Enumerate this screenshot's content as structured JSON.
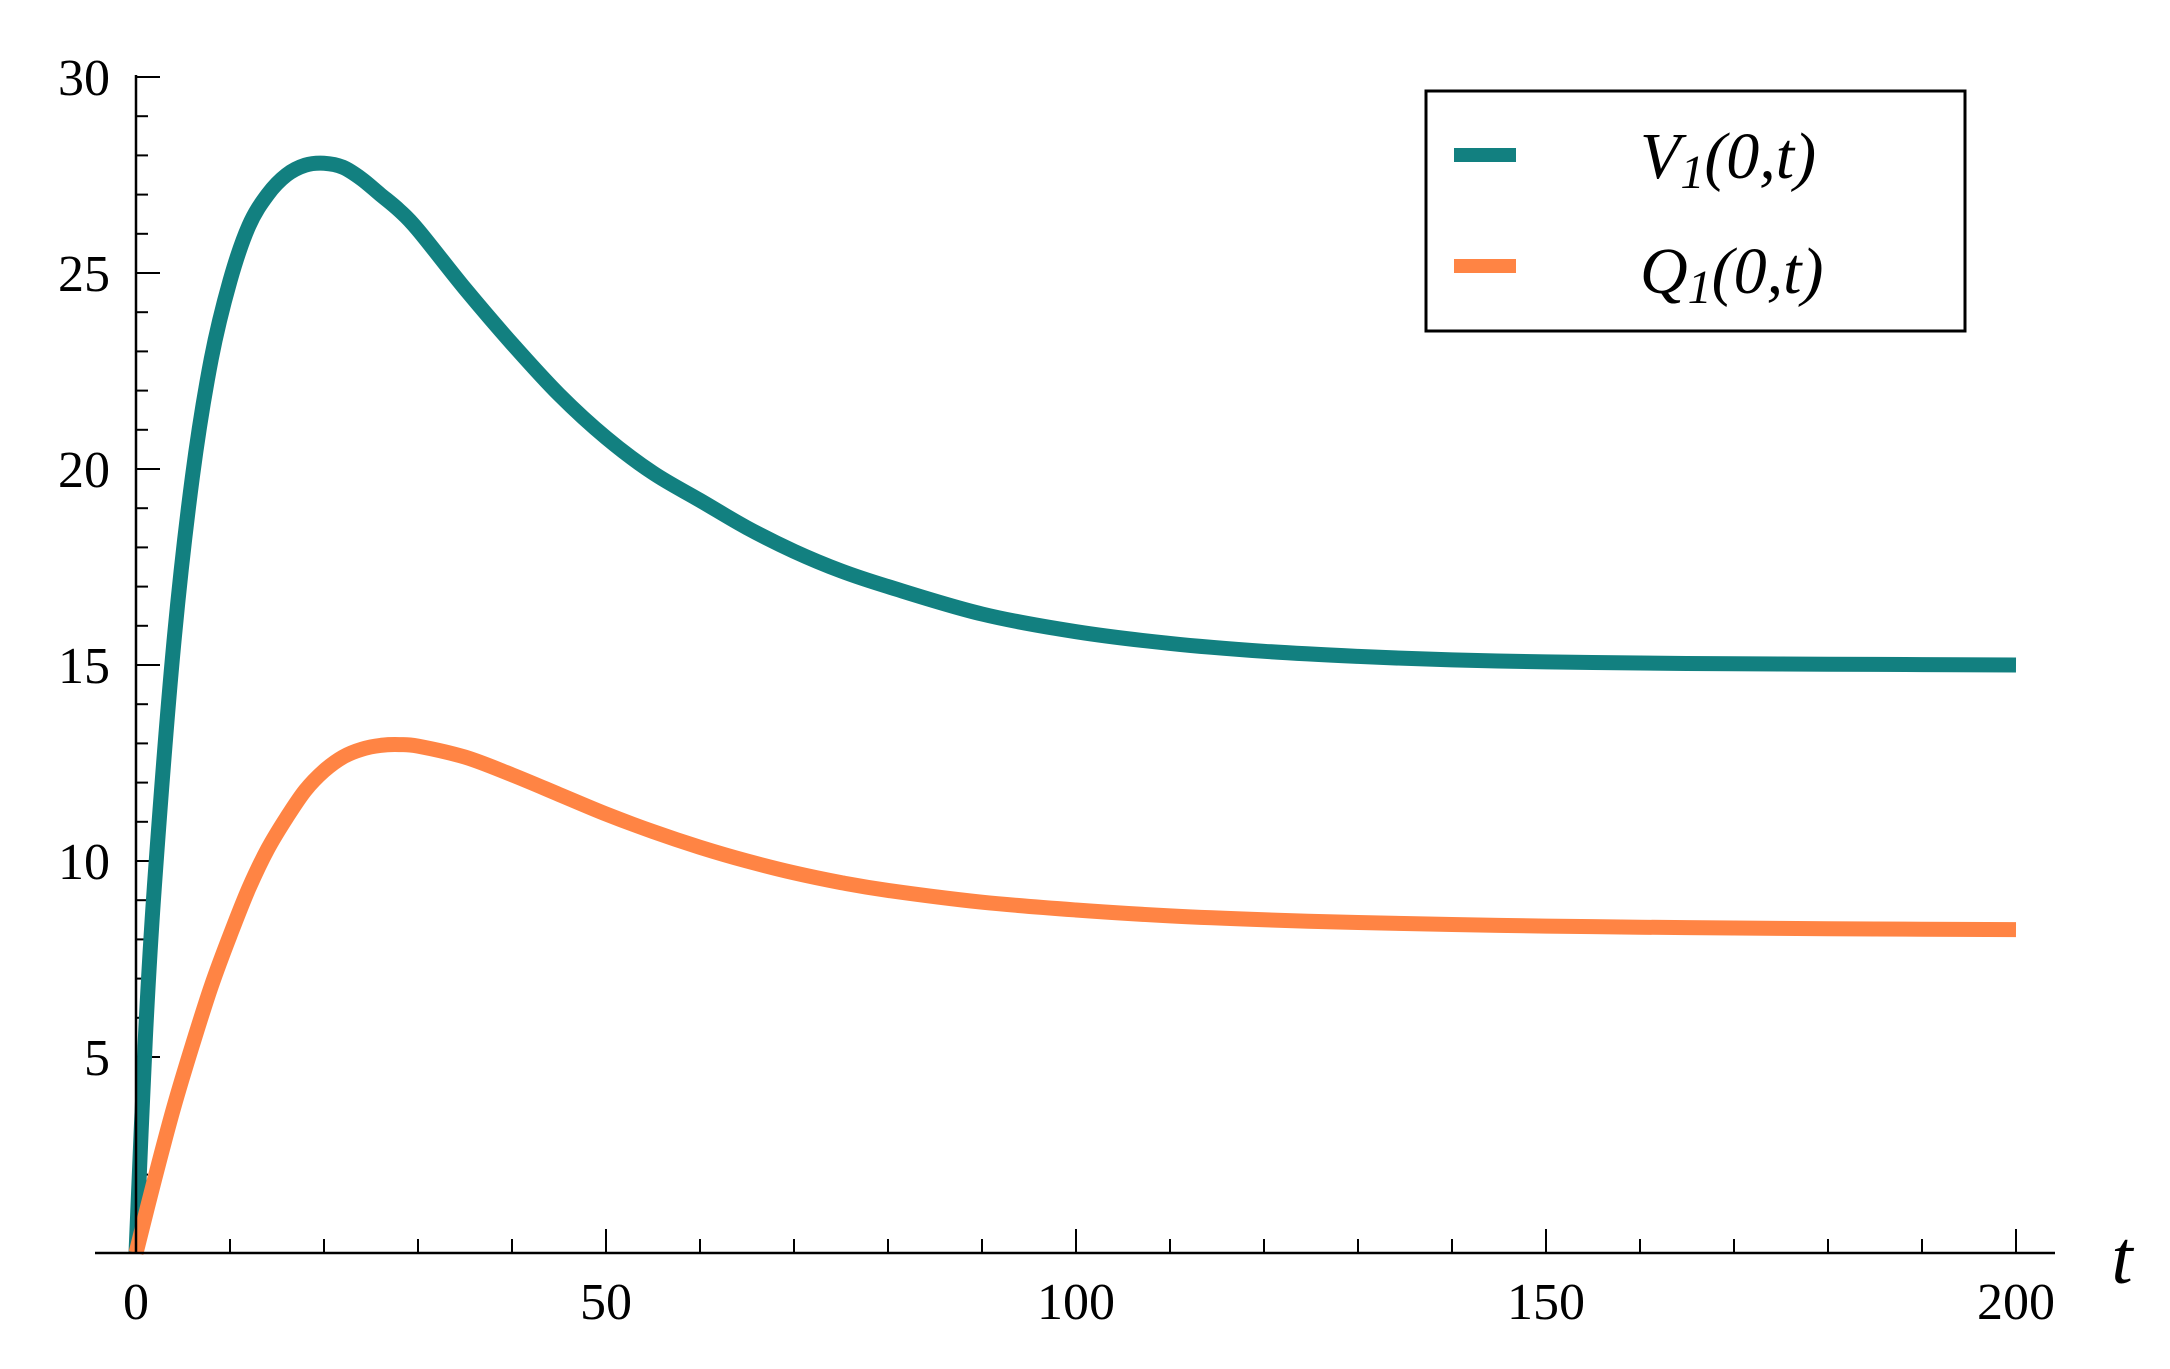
{
  "chart_data": {
    "type": "line",
    "xlabel": "t",
    "ylabel": "",
    "xlim": [
      0,
      200
    ],
    "ylim": [
      0,
      30
    ],
    "xticks": [
      0,
      50,
      100,
      150,
      200
    ],
    "yticks": [
      5,
      10,
      15,
      20,
      25,
      30
    ],
    "grid": false,
    "legend_position": "top-right",
    "colors": {
      "V1": "#128080",
      "Q1": "#ff8444"
    },
    "series": [
      {
        "name": "V1(0,t)",
        "legend_main": "V",
        "legend_sub": "1",
        "legend_args": "(0,t)",
        "color": "#128080",
        "x": [
          0,
          1,
          2,
          4,
          6,
          8,
          10,
          12,
          14,
          16,
          18,
          20,
          22,
          24,
          26,
          28,
          30,
          35,
          40,
          45,
          50,
          55,
          60,
          65,
          70,
          75,
          80,
          90,
          100,
          110,
          120,
          130,
          140,
          150,
          160,
          170,
          180,
          190,
          200
        ],
        "y": [
          0,
          5.5,
          9.5,
          15.5,
          19.8,
          22.8,
          24.8,
          26.2,
          27.0,
          27.5,
          27.75,
          27.8,
          27.7,
          27.4,
          27.0,
          26.6,
          26.1,
          24.6,
          23.2,
          21.9,
          20.8,
          19.9,
          19.2,
          18.5,
          17.9,
          17.4,
          17.0,
          16.3,
          15.85,
          15.55,
          15.35,
          15.22,
          15.13,
          15.08,
          15.05,
          15.03,
          15.02,
          15.01,
          15.0
        ]
      },
      {
        "name": "Q1(0,t)",
        "legend_main": "Q",
        "legend_sub": "1",
        "legend_args": "(0,t)",
        "color": "#ff8444",
        "x": [
          0,
          2,
          4,
          6,
          8,
          10,
          12,
          14,
          16,
          18,
          20,
          22,
          24,
          26,
          28,
          30,
          35,
          40,
          45,
          50,
          55,
          60,
          65,
          70,
          75,
          80,
          90,
          100,
          110,
          120,
          130,
          140,
          150,
          160,
          170,
          180,
          190,
          200
        ],
        "y": [
          0,
          1.9,
          3.7,
          5.3,
          6.8,
          8.1,
          9.3,
          10.3,
          11.1,
          11.8,
          12.3,
          12.65,
          12.85,
          12.95,
          12.97,
          12.93,
          12.65,
          12.2,
          11.7,
          11.2,
          10.75,
          10.35,
          10.0,
          9.7,
          9.45,
          9.25,
          8.95,
          8.75,
          8.6,
          8.5,
          8.43,
          8.38,
          8.34,
          8.31,
          8.29,
          8.27,
          8.26,
          8.25
        ]
      }
    ]
  }
}
